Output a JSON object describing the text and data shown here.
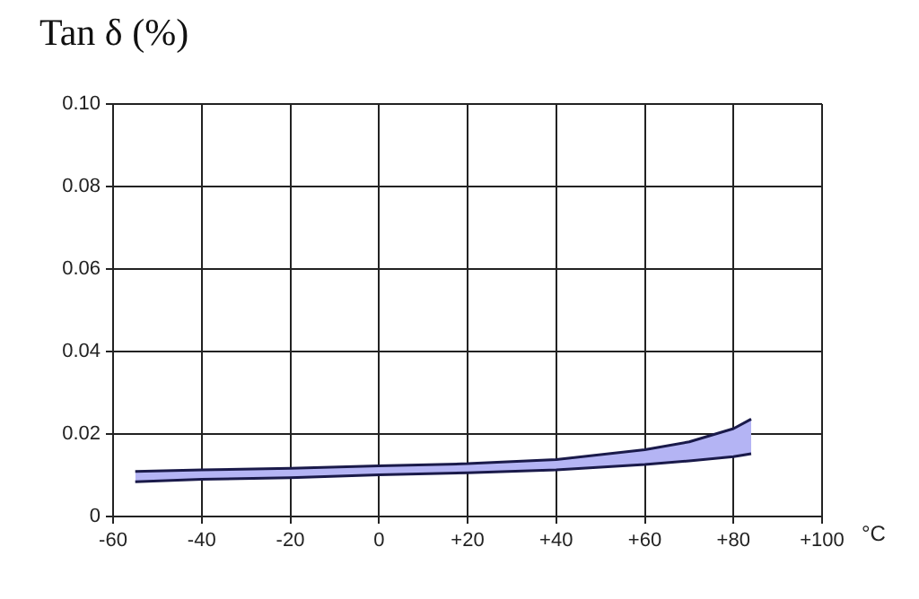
{
  "chart_data": {
    "type": "area",
    "title": "Tan δ (%)",
    "xlabel": "°C",
    "x": [
      -55,
      -40,
      -20,
      0,
      20,
      40,
      60,
      70,
      80,
      84
    ],
    "series": [
      {
        "type": "line",
        "color": "#1a1a4a",
        "values": [
          0.0084,
          0.009,
          0.0094,
          0.0101,
          0.0106,
          0.0113,
          0.0126,
          0.0135,
          0.0145,
          0.0152
        ]
      },
      {
        "type": "area",
        "color": "#b4b4f4",
        "values": [
          0.0109,
          0.0113,
          0.0117,
          0.0123,
          0.0128,
          0.0138,
          0.0162,
          0.0181,
          0.0213,
          0.0236
        ]
      }
    ],
    "xlim": [
      -60,
      100
    ],
    "xticks": [
      -60,
      -40,
      -20,
      0,
      {
        "value": 20,
        "label": "+20"
      },
      {
        "value": 40,
        "label": "+40"
      },
      {
        "value": 60,
        "label": "+60"
      },
      {
        "value": 80,
        "label": "+80"
      },
      {
        "value": 100,
        "label": "+100"
      }
    ],
    "ylim": [
      0,
      0.1
    ],
    "yticks": [
      0,
      0.02,
      0.04,
      0.06,
      0.08,
      {
        "value": 0.1,
        "label": "0.10"
      }
    ],
    "grid": true,
    "legend": false
  }
}
